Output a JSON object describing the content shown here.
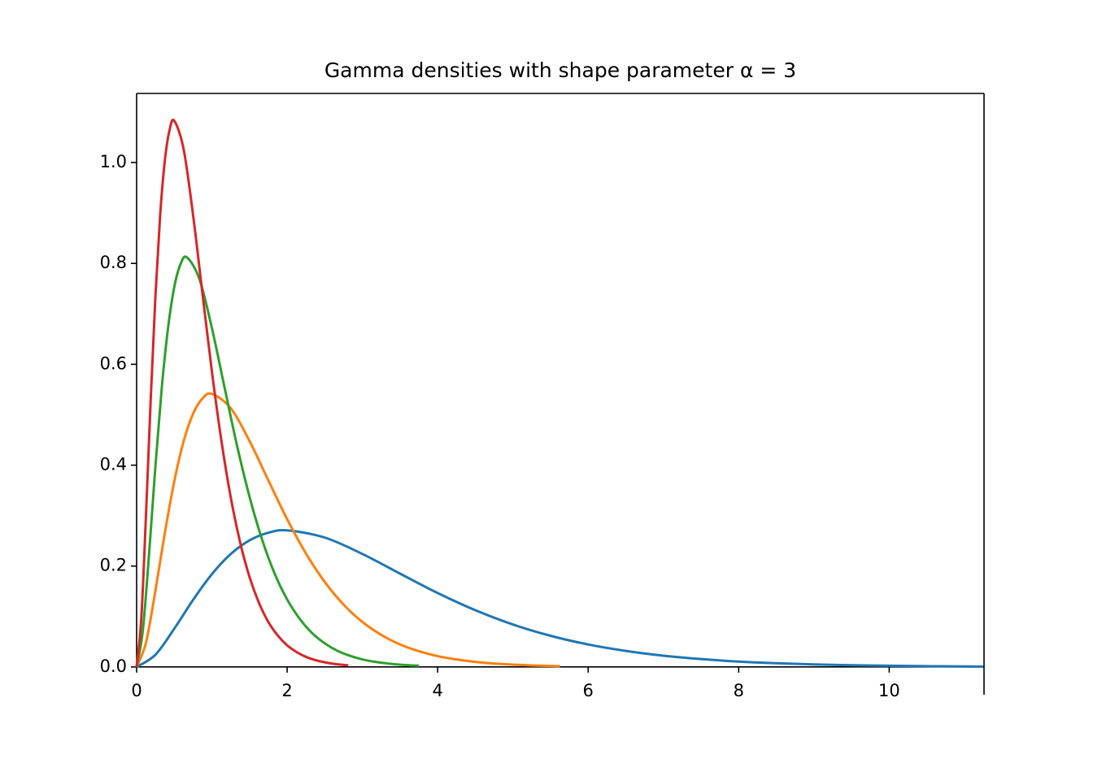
{
  "chart_data": {
    "type": "line",
    "title": "Gamma densities with shape parameter α = 3",
    "xlim": [
      0,
      11.26
    ],
    "ylim": [
      -0.055,
      1.137
    ],
    "xticks": [
      0,
      2,
      4,
      6,
      8,
      10
    ],
    "yticks": [
      {
        "value": 0,
        "label": "0.0"
      },
      0.2,
      0.4,
      0.6,
      0.8,
      {
        "value": 1,
        "label": "1.0"
      }
    ],
    "series": [
      {
        "color": "#1f77b4",
        "x": [
          0,
          0.25,
          0.5,
          0.75,
          1,
          1.25,
          1.5,
          1.75,
          2,
          2.5,
          3,
          3.5,
          4,
          4.5,
          5,
          5.5,
          6,
          6.5,
          7,
          7.5,
          8,
          8.5,
          9,
          9.5,
          10,
          10.5,
          11,
          11.25
        ],
        "values": [
          0,
          0.0243,
          0.0758,
          0.1329,
          0.1839,
          0.2238,
          0.251,
          0.2661,
          0.2707,
          0.2565,
          0.224,
          0.185,
          0.1465,
          0.1125,
          0.0842,
          0.0618,
          0.0446,
          0.0318,
          0.0223,
          0.0156,
          0.0107,
          0.0074,
          0.005,
          0.0034,
          0.0023,
          0.0015,
          0.001,
          0.0008
        ]
      },
      {
        "color": "#ff7f0e",
        "x": [
          0,
          0.125,
          0.25,
          0.375,
          0.5,
          0.625,
          0.75,
          0.875,
          1,
          1.25,
          1.5,
          1.75,
          2,
          2.25,
          2.5,
          2.75,
          3,
          3.25,
          3.5,
          3.75,
          4,
          4.25,
          4.5,
          4.75,
          5,
          5.25,
          5.5,
          5.625
        ],
        "values": [
          0,
          0.0486,
          0.1516,
          0.2658,
          0.3678,
          0.4476,
          0.502,
          0.5322,
          0.5414,
          0.513,
          0.448,
          0.37,
          0.293,
          0.225,
          0.1684,
          0.1236,
          0.0892,
          0.0636,
          0.0446,
          0.0312,
          0.0214,
          0.0148,
          0.01,
          0.0068,
          0.0046,
          0.003,
          0.002,
          0.0016
        ]
      },
      {
        "color": "#2ca02c",
        "x": [
          0,
          0.083,
          0.167,
          0.25,
          0.333,
          0.417,
          0.5,
          0.583,
          0.667,
          0.833,
          1,
          1.167,
          1.333,
          1.5,
          1.667,
          1.833,
          2,
          2.167,
          2.333,
          2.5,
          2.667,
          2.833,
          3,
          3.167,
          3.333,
          3.5,
          3.667,
          3.75
        ],
        "values": [
          0,
          0.0729,
          0.2274,
          0.3987,
          0.5517,
          0.6714,
          0.753,
          0.7983,
          0.8121,
          0.7695,
          0.672,
          0.555,
          0.4395,
          0.3375,
          0.2526,
          0.1854,
          0.1338,
          0.0954,
          0.0669,
          0.0468,
          0.0321,
          0.0222,
          0.015,
          0.0102,
          0.0069,
          0.0045,
          0.003,
          0.0024
        ]
      },
      {
        "color": "#d62728",
        "x": [
          0,
          0.0625,
          0.125,
          0.1875,
          0.25,
          0.3125,
          0.375,
          0.4375,
          0.5,
          0.625,
          0.75,
          0.875,
          1,
          1.125,
          1.25,
          1.375,
          1.5,
          1.625,
          1.75,
          1.875,
          2,
          2.125,
          2.25,
          2.375,
          2.5,
          2.625,
          2.75,
          2.8125
        ],
        "values": [
          0,
          0.0972,
          0.3032,
          0.5316,
          0.7356,
          0.8952,
          1.004,
          1.0644,
          1.0828,
          1.026,
          0.896,
          0.74,
          0.586,
          0.45,
          0.3368,
          0.2472,
          0.1784,
          0.1272,
          0.0892,
          0.0624,
          0.0428,
          0.0296,
          0.02,
          0.0136,
          0.0092,
          0.006,
          0.004,
          0.0032
        ]
      }
    ]
  }
}
